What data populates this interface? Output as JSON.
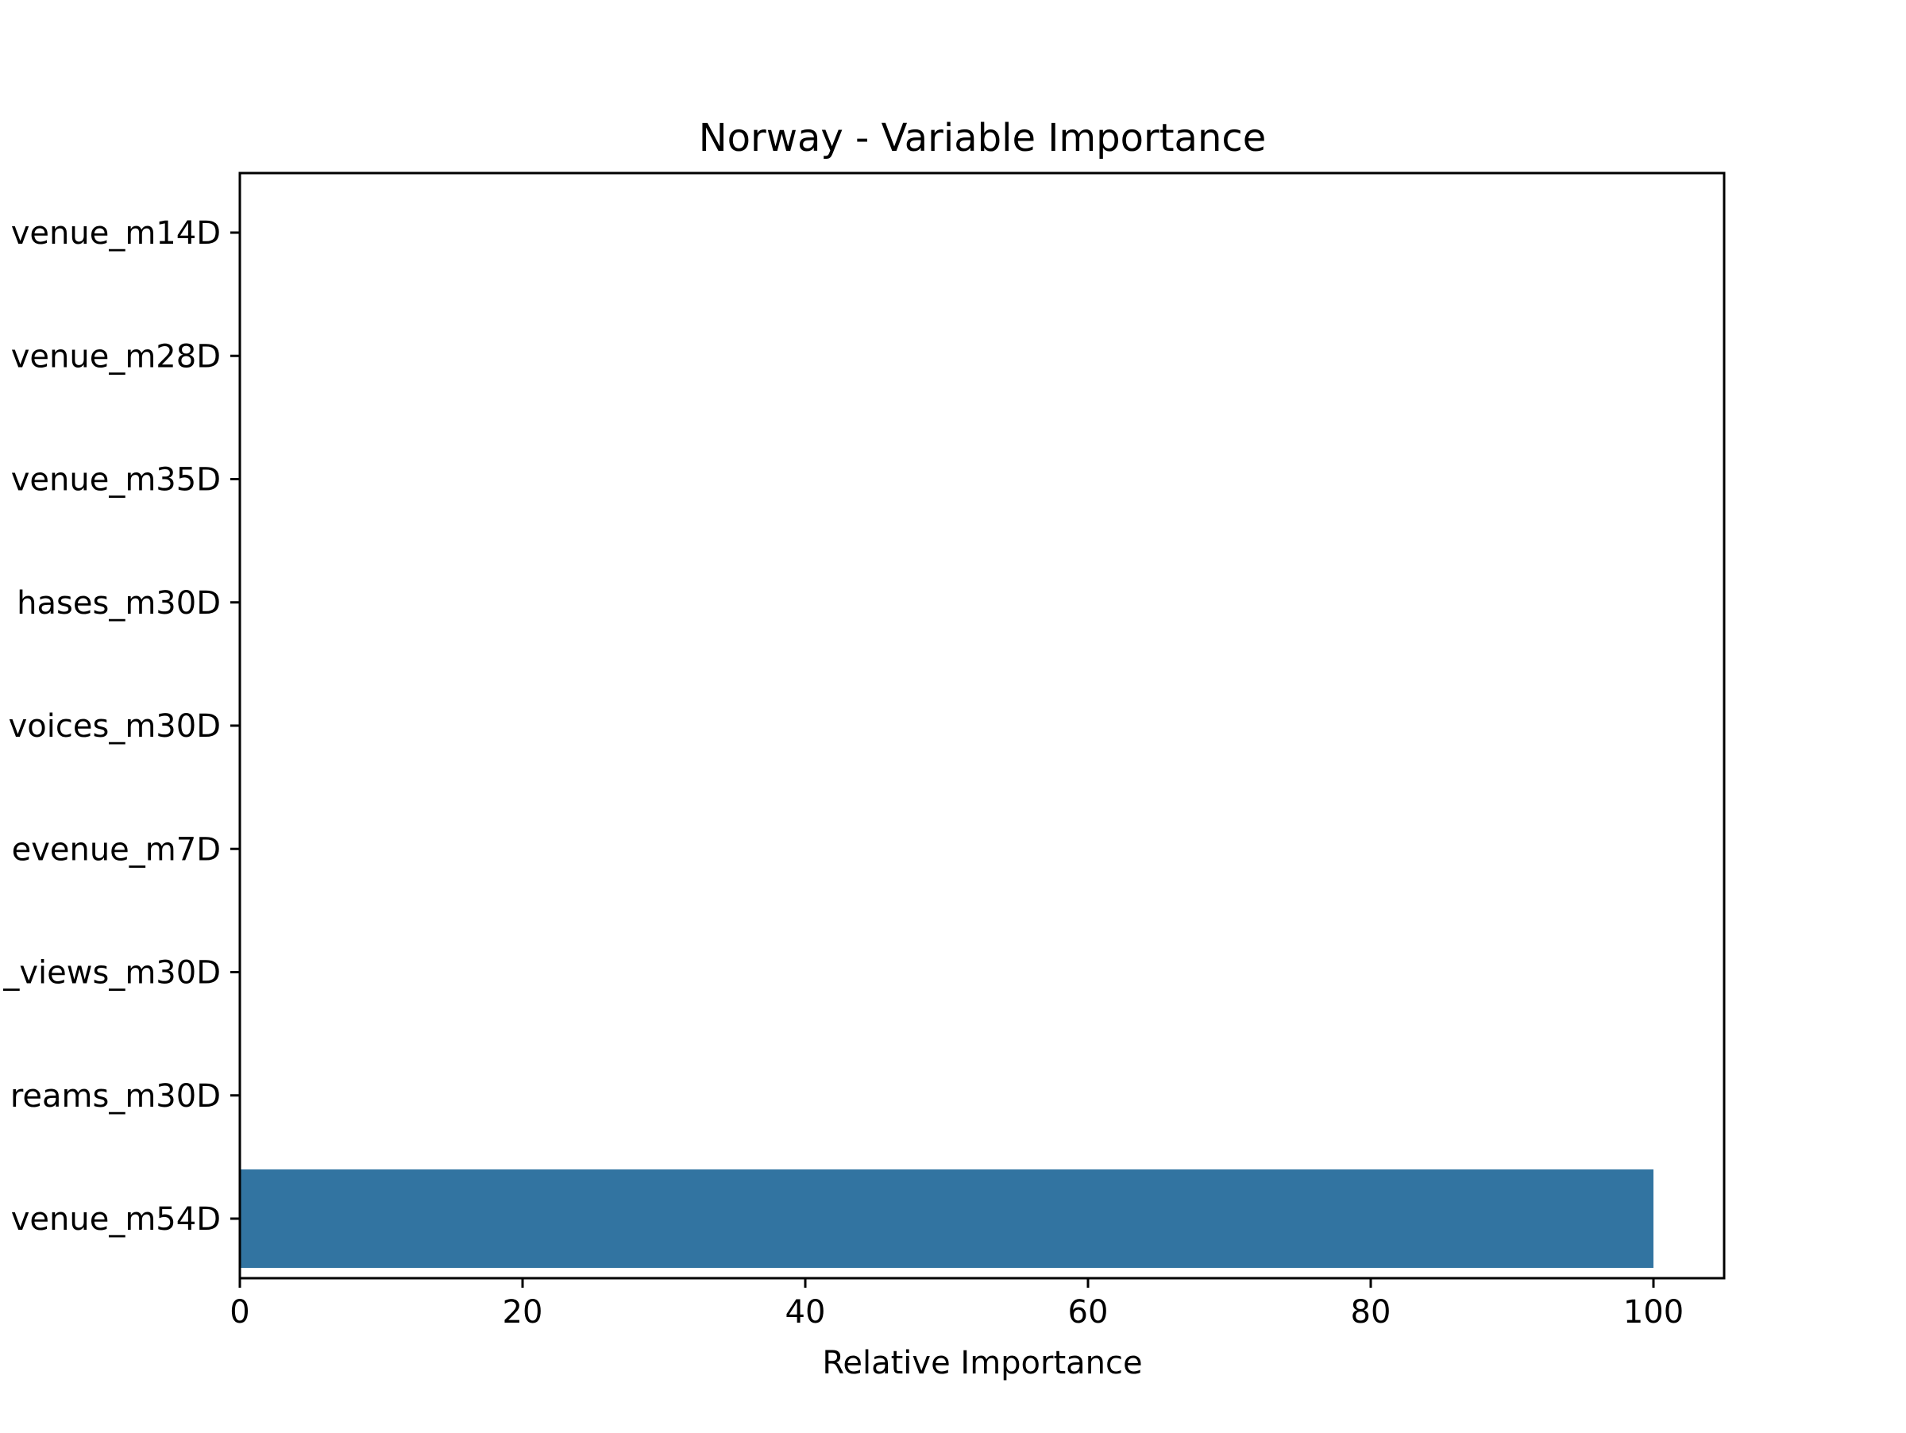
{
  "chart_data": {
    "type": "bar",
    "orientation": "horizontal",
    "title": "Norway - Variable Importance",
    "xlabel": "Relative Importance",
    "ylabel": "",
    "categories": [
      "venue_m14D",
      "venue_m28D",
      "venue_m35D",
      "hases_m30D",
      "voices_m30D",
      "evenue_m7D",
      "_views_m30D",
      "reams_m30D",
      "venue_m54D"
    ],
    "values": [
      0,
      0,
      0,
      0,
      0,
      0,
      0,
      0,
      100
    ],
    "xlim": [
      0,
      105
    ],
    "xticks": [
      0,
      20,
      40,
      60,
      80,
      100
    ],
    "xtick_labels": [
      "0",
      "20",
      "40",
      "60",
      "80",
      "100"
    ],
    "bar_color": "#3274a1",
    "grid": false,
    "legend": "none"
  }
}
